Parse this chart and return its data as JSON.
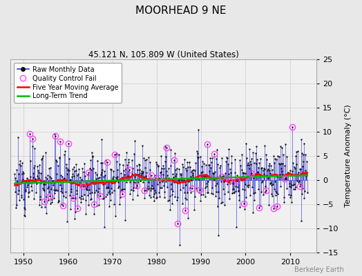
{
  "title": "MOORHEAD 9 NE",
  "subtitle": "45.121 N, 105.809 W (United States)",
  "ylabel": "Temperature Anomaly (°C)",
  "watermark": "Berkeley Earth",
  "xlim": [
    1947,
    2016
  ],
  "ylim": [
    -15,
    25
  ],
  "yticks": [
    -15,
    -10,
    -5,
    0,
    5,
    10,
    15,
    20,
    25
  ],
  "xticks": [
    1950,
    1960,
    1970,
    1980,
    1990,
    2000,
    2010
  ],
  "bg_color": "#e8e8e8",
  "plot_bg_color": "#f0f0f0",
  "raw_line_color": "#3333cc",
  "raw_marker_color": "#111111",
  "qc_color": "#ff44ff",
  "moving_avg_color": "#ff0000",
  "trend_color": "#00bb00",
  "seed": 12,
  "n_points": 792,
  "start_year": 1948.0,
  "end_year": 2013.9,
  "moving_avg_window": 60,
  "noise_std": 3.2,
  "trend_slope_per_year": 0.015
}
